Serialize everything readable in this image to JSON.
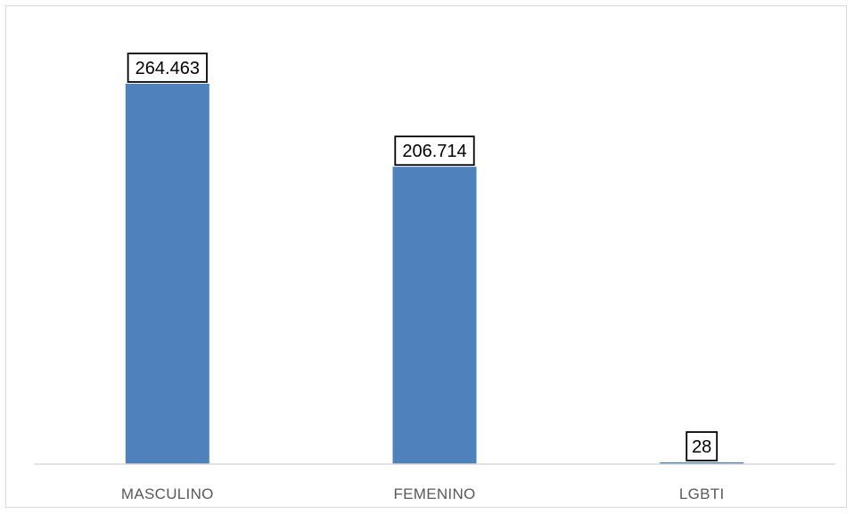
{
  "chart_data": {
    "type": "bar",
    "categories": [
      "MASCULINO",
      "FEMENINO",
      "LGBTI"
    ],
    "values": [
      264463,
      206714,
      28
    ],
    "data_labels": [
      "264.463",
      "206.714",
      "28"
    ],
    "title": "",
    "xlabel": "",
    "ylabel": "",
    "ylim": [
      0,
      264463
    ],
    "grid": false,
    "legend": "none",
    "bar_color": "#4F81BD",
    "axis_color": "#d9d9d9",
    "tick_label_color": "#595959"
  }
}
